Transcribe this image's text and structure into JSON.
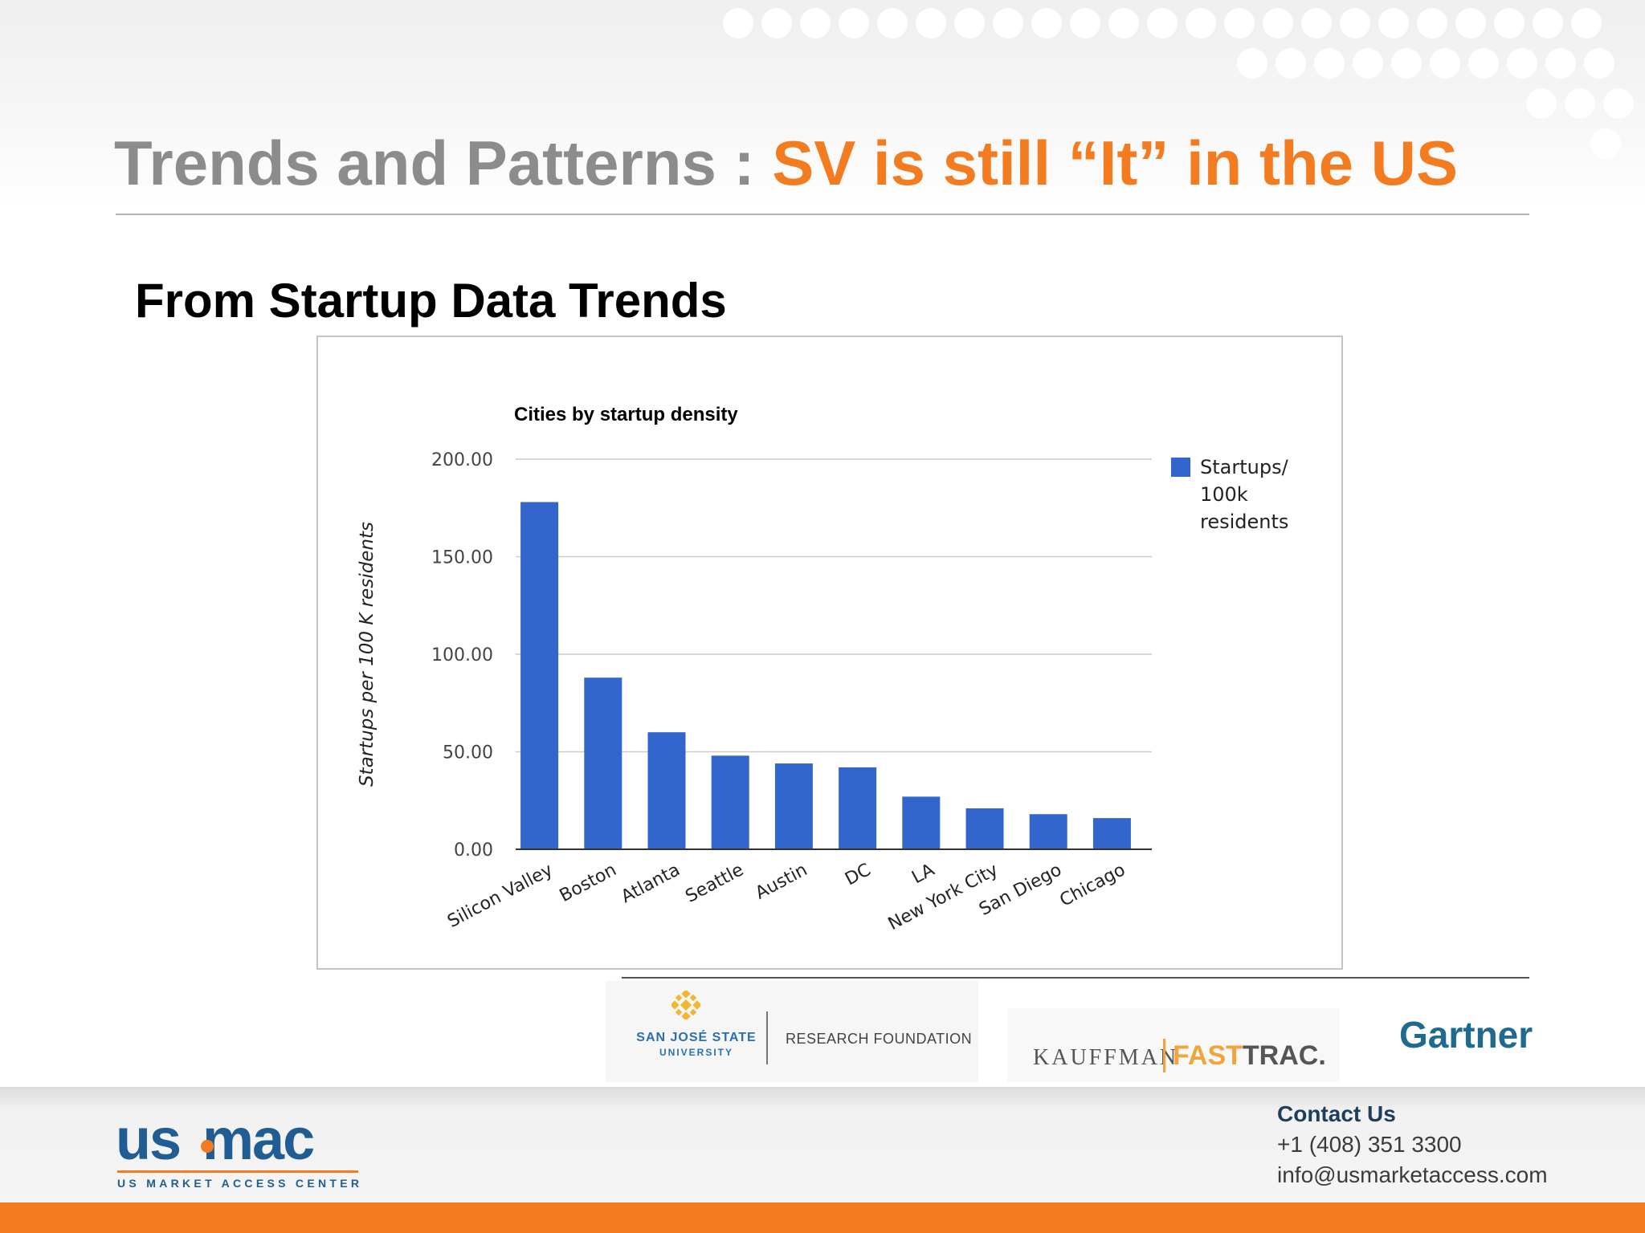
{
  "slide": {
    "title_part1": "Trends and Patterns : ",
    "title_part2": "SV is still “It” in the US",
    "subtitle": "From Startup Data Trends"
  },
  "chart_data": {
    "type": "bar",
    "title": "Cities by startup density",
    "ylabel": "Startups per 100 K residents",
    "xlabel": "",
    "categories": [
      "Silicon Valley",
      "Boston",
      "Atlanta",
      "Seattle",
      "Austin",
      "DC",
      "LA",
      "New York City",
      "San Diego",
      "Chicago"
    ],
    "series": [
      {
        "name": "Startups/ 100k residents",
        "legend_lines": [
          "Startups/",
          "100k",
          "residents"
        ],
        "values": [
          178,
          88,
          60,
          48,
          44,
          42,
          27,
          21,
          18,
          16
        ]
      }
    ],
    "ylim": [
      0,
      200
    ],
    "yticks": [
      "0.00",
      "50.00",
      "100.00",
      "150.00",
      "200.00"
    ],
    "grid": true,
    "legend_position": "right",
    "bar_color": "#3366cc"
  },
  "logos": {
    "sjsu_name": "SAN JOSÉ STATE",
    "sjsu_sub": "UNIVERSITY",
    "sjsu_rf": "RESEARCH FOUNDATION",
    "kauffman": "KAUFFMAN",
    "fast": "FAST",
    "trac": "TRAC.",
    "gartner": "Gartner"
  },
  "footer": {
    "brand_us": "us",
    "brand_mac": "mac",
    "brand_tagline": "US MARKET ACCESS CENTER",
    "contact_heading": "Contact Us",
    "phone": "+1 (408) 351 3300",
    "email": "info@usmarketaccess.com"
  },
  "colors": {
    "accent": "#f47c20",
    "title_gray": "#8c8c8c",
    "brand_blue": "#1f5d93"
  }
}
